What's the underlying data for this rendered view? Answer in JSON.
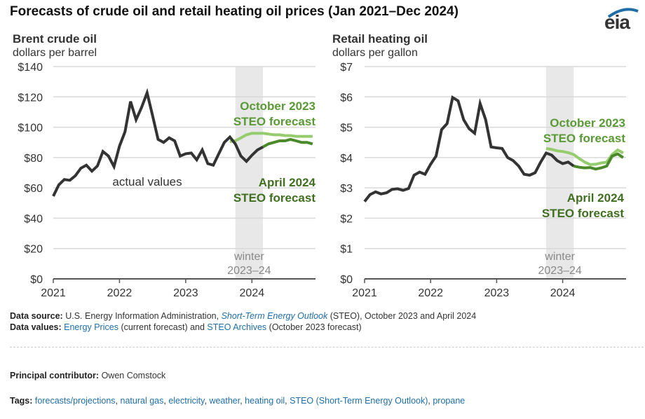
{
  "title": "Forecasts of crude oil and retail heating oil prices (Jan 2021–Dec 2024)",
  "logo": {
    "text": "eia",
    "color": "#1f6ea8"
  },
  "colors": {
    "actual": "#333333",
    "oct2023": "#94cc6e",
    "apr2024": "#4a8a2a",
    "oct_label": "#5a9a36",
    "apr_label": "#3f6f1f",
    "winter_band": "#e8e8e8",
    "grid": "#d9d9d9",
    "axis": "#555555"
  },
  "chart_data": [
    {
      "type": "line",
      "title": "Brent crude oil",
      "ylabel": "dollars per barrel",
      "ylim": [
        0,
        140
      ],
      "yticks": [
        0,
        20,
        40,
        60,
        80,
        100,
        120,
        140
      ],
      "ytick_labels": [
        "$0",
        "$20",
        "$40",
        "$60",
        "$80",
        "$100",
        "$120",
        "$140"
      ],
      "xtick_labels": [
        "2021",
        "2022",
        "2023",
        "2024"
      ],
      "grid": true,
      "shaded_region": {
        "label_line1": "winter",
        "label_line2": "2023–24",
        "start_month_index": 33,
        "end_month_index": 38
      },
      "annotations": {
        "actual": "actual values",
        "oct_line1": "October 2023",
        "oct_line2": "STEO forecast",
        "apr_line1": "April 2024",
        "apr_line2": "STEO forecast"
      },
      "series": [
        {
          "name": "actual values",
          "start_month_index": 0,
          "values": [
            54.5,
            62,
            65.5,
            65,
            68,
            73,
            75,
            71,
            74.5,
            84,
            81,
            74,
            87.5,
            97,
            117,
            105,
            113,
            122.7,
            107.5,
            92,
            90,
            93,
            91,
            81,
            82.5,
            83,
            78.5,
            85,
            76,
            75,
            82.5,
            90,
            93.5,
            89,
            81,
            77.5,
            81.5,
            85,
            87
          ]
        },
        {
          "name": "October 2023 STEO forecast",
          "start_month_index": 32,
          "values": [
            90.5,
            91,
            93,
            95,
            96,
            96,
            96,
            95.5,
            95,
            95,
            94.5,
            94.5,
            94,
            94,
            94,
            94
          ]
        },
        {
          "name": "April 2024 STEO forecast",
          "start_month_index": 38,
          "values": [
            87,
            89,
            90,
            91,
            91,
            92,
            91,
            90,
            90,
            89
          ]
        }
      ]
    },
    {
      "type": "line",
      "title": "Retail heating oil",
      "ylabel": "dollars per gallon",
      "ylim": [
        0,
        7
      ],
      "yticks": [
        0,
        1,
        2,
        3,
        4,
        5,
        6,
        7
      ],
      "ytick_labels": [
        "$0",
        "$1",
        "$2",
        "$3",
        "$4",
        "$5",
        "$6",
        "$7"
      ],
      "xtick_labels": [
        "2021",
        "2022",
        "2023",
        "2024"
      ],
      "grid": true,
      "shaded_region": {
        "label_line1": "winter",
        "label_line2": "2023–24",
        "start_month_index": 33,
        "end_month_index": 38
      },
      "annotations": {
        "oct_line1": "October 2023",
        "oct_line2": "STEO forecast",
        "apr_line1": "April 2024",
        "apr_line2": "STEO forecast"
      },
      "series": [
        {
          "name": "actual values",
          "start_month_index": 0,
          "values": [
            2.55,
            2.78,
            2.87,
            2.8,
            2.84,
            2.95,
            2.97,
            2.92,
            2.98,
            3.42,
            3.52,
            3.45,
            3.78,
            4.05,
            4.92,
            5.12,
            5.98,
            5.87,
            5.25,
            4.95,
            4.8,
            5.78,
            5.25,
            4.35,
            4.32,
            4.3,
            4.0,
            3.9,
            3.72,
            3.45,
            3.42,
            3.5,
            3.85,
            4.15,
            4.08,
            3.9,
            3.8,
            3.85,
            3.72
          ]
        },
        {
          "name": "October 2023 STEO forecast",
          "start_month_index": 33,
          "values": [
            4.3,
            4.27,
            4.22,
            4.2,
            4.16,
            4.1,
            3.97,
            3.85,
            3.77,
            3.78,
            3.82,
            3.85,
            4.1,
            4.25,
            4.15
          ]
        },
        {
          "name": "April 2024 STEO forecast",
          "start_month_index": 38,
          "values": [
            3.72,
            3.68,
            3.66,
            3.67,
            3.62,
            3.66,
            3.72,
            4.05,
            4.12,
            4.0
          ]
        }
      ]
    }
  ],
  "footer": {
    "source_label": "Data source:",
    "source_text1": "U.S. Energy Information Administration,",
    "source_link": "Short-Term Energy Outlook",
    "source_text2": "(STEO), October 2023 and April 2024",
    "values_label": "Data values:",
    "values_link1": "Energy Prices",
    "values_text1": "(current forecast) and",
    "values_link2": "STEO Archives",
    "values_text2": "(October 2023 forecast)",
    "contributor_label": "Principal contributor:",
    "contributor_name": "Owen Comstock",
    "tags_label": "Tags:",
    "tags": [
      "forecasts/projections",
      "natural gas",
      "electricity",
      "weather",
      "heating oil",
      "STEO (Short-Term Energy Outlook)",
      "propane"
    ]
  }
}
